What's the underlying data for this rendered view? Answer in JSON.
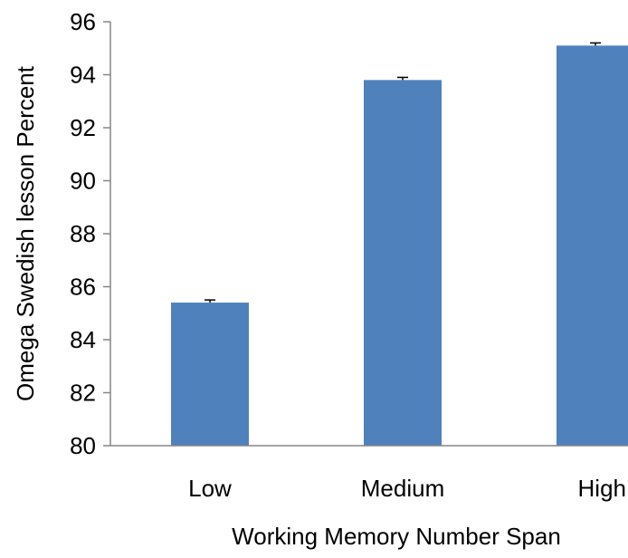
{
  "chart_data": {
    "type": "bar",
    "title": "",
    "xlabel": "Working Memory Number Span",
    "ylabel": "Omega Swedish lesson Percent",
    "categories": [
      "Low",
      "Medium",
      "High"
    ],
    "values": [
      85.4,
      93.8,
      95.1
    ],
    "error": [
      0.1,
      0.1,
      0.1
    ],
    "ylim": [
      80,
      96
    ],
    "yticks": [
      "80",
      "82",
      "84",
      "86",
      "88",
      "90",
      "92",
      "94",
      "96"
    ],
    "grid": false,
    "legend": "none",
    "colors": {
      "bar": "#4f81bd",
      "axis": "#868686",
      "text": "#000000"
    }
  }
}
